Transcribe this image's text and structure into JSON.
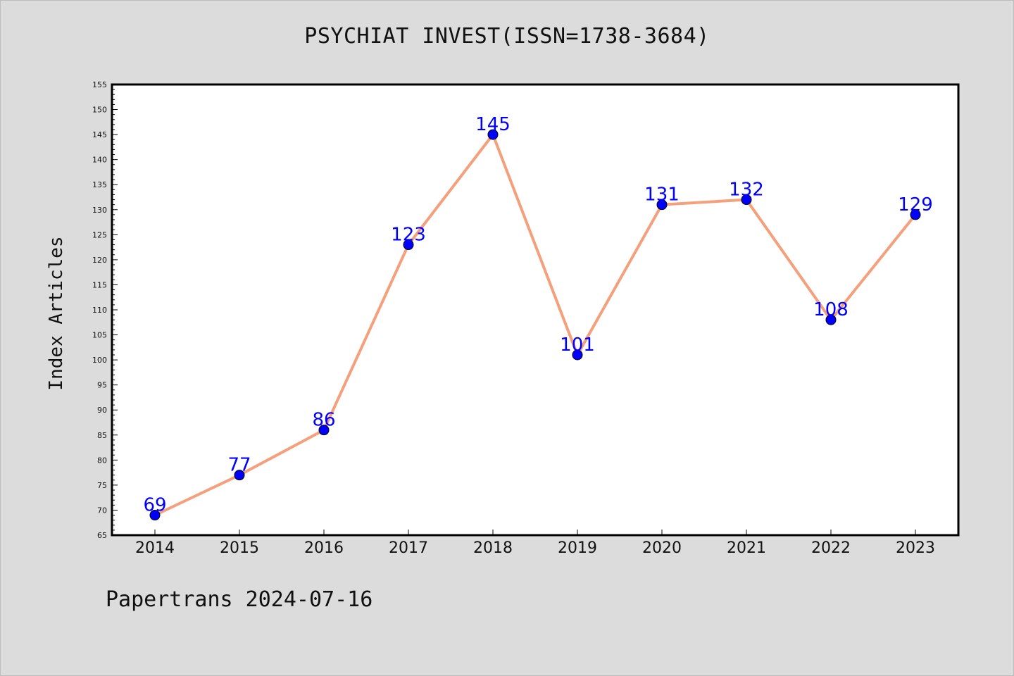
{
  "chart_data": {
    "type": "line",
    "title": "PSYCHIAT INVEST(ISSN=1738-3684)",
    "xlabel": "",
    "ylabel": "Index Articles",
    "categories": [
      "2014",
      "2015",
      "2016",
      "2017",
      "2018",
      "2019",
      "2020",
      "2021",
      "2022",
      "2023"
    ],
    "series": [
      {
        "values": [
          69,
          77,
          86,
          123,
          145,
          101,
          131,
          132,
          108,
          129
        ],
        "color": "#f4a07c",
        "marker_color": "#0000ff",
        "label_color": "#0000ff"
      }
    ],
    "ylim": [
      65,
      155
    ],
    "ytick_step": 5,
    "grid": false,
    "legend": "none"
  },
  "footer": "Papertrans 2024-07-16",
  "colors": {
    "background": "#dcdcdc",
    "plot_background": "#ffffff",
    "line": "#f4a07c",
    "marker": "#0000ff",
    "data_label": "#0000ff"
  }
}
